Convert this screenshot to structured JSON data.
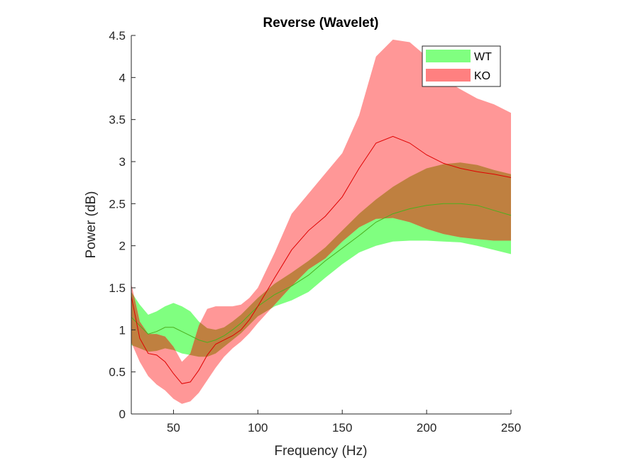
{
  "chart_data": {
    "type": "area",
    "title": "Reverse (Wavelet)",
    "xlabel": "Frequency (Hz)",
    "ylabel": "Power (dB)",
    "xlim": [
      25,
      250
    ],
    "ylim": [
      0,
      4.5
    ],
    "xticks": [
      50,
      100,
      150,
      200,
      250
    ],
    "xtick_labels": [
      "50",
      "100",
      "150",
      "200",
      "250"
    ],
    "yticks": [
      0,
      0.5,
      1,
      1.5,
      2,
      2.5,
      3,
      3.5,
      4,
      4.5
    ],
    "ytick_labels": [
      "0",
      "0.5",
      "1",
      "1.5",
      "2",
      "2.5",
      "3",
      "3.5",
      "4",
      "4.5"
    ],
    "grid": false,
    "legend_position": "top-right",
    "x": [
      25,
      30,
      35,
      40,
      45,
      50,
      55,
      60,
      65,
      70,
      75,
      80,
      85,
      90,
      95,
      100,
      110,
      120,
      130,
      140,
      150,
      160,
      170,
      180,
      190,
      200,
      210,
      220,
      230,
      240,
      250
    ],
    "series": [
      {
        "name": "WT",
        "fill_color": "#80ff80",
        "line_color": "#4caf1f",
        "mean": [
          1.15,
          1.05,
          0.95,
          0.98,
          1.03,
          1.03,
          0.98,
          0.93,
          0.88,
          0.85,
          0.88,
          0.93,
          1.0,
          1.08,
          1.18,
          1.28,
          1.42,
          1.52,
          1.65,
          1.82,
          1.97,
          2.12,
          2.28,
          2.38,
          2.44,
          2.48,
          2.5,
          2.5,
          2.48,
          2.42,
          2.36
        ],
        "upper": [
          1.45,
          1.3,
          1.18,
          1.22,
          1.28,
          1.32,
          1.28,
          1.22,
          1.1,
          1.02,
          1.0,
          1.03,
          1.1,
          1.18,
          1.28,
          1.38,
          1.55,
          1.68,
          1.82,
          1.98,
          2.18,
          2.38,
          2.55,
          2.7,
          2.82,
          2.92,
          2.97,
          2.99,
          2.96,
          2.9,
          2.85
        ],
        "lower": [
          0.82,
          0.78,
          0.74,
          0.75,
          0.78,
          0.76,
          0.72,
          0.7,
          0.68,
          0.68,
          0.72,
          0.8,
          0.88,
          0.96,
          1.06,
          1.16,
          1.28,
          1.35,
          1.45,
          1.62,
          1.78,
          1.92,
          2.0,
          2.05,
          2.06,
          2.06,
          2.05,
          2.04,
          2.0,
          1.95,
          1.9
        ]
      },
      {
        "name": "KO",
        "fill_color": "#ff8080",
        "line_color": "#e00000",
        "mean": [
          1.4,
          0.9,
          0.72,
          0.7,
          0.62,
          0.48,
          0.36,
          0.38,
          0.52,
          0.7,
          0.83,
          0.88,
          0.93,
          1.0,
          1.12,
          1.28,
          1.62,
          1.95,
          2.18,
          2.35,
          2.58,
          2.92,
          3.22,
          3.3,
          3.22,
          3.08,
          2.98,
          2.92,
          2.88,
          2.85,
          2.81
        ],
        "upper": [
          1.55,
          1.1,
          0.95,
          0.95,
          0.92,
          0.8,
          0.62,
          0.72,
          1.05,
          1.25,
          1.28,
          1.28,
          1.28,
          1.3,
          1.38,
          1.5,
          1.92,
          2.38,
          2.62,
          2.86,
          3.1,
          3.55,
          4.25,
          4.45,
          4.42,
          4.25,
          3.98,
          3.86,
          3.75,
          3.68,
          3.58
        ],
        "lower": [
          0.85,
          0.62,
          0.45,
          0.35,
          0.28,
          0.18,
          0.12,
          0.15,
          0.25,
          0.4,
          0.55,
          0.68,
          0.78,
          0.86,
          0.96,
          1.08,
          1.3,
          1.52,
          1.72,
          1.85,
          2.05,
          2.22,
          2.32,
          2.33,
          2.28,
          2.2,
          2.14,
          2.1,
          2.08,
          2.06,
          2.06
        ]
      }
    ],
    "overlap_color": "#bf8040"
  }
}
